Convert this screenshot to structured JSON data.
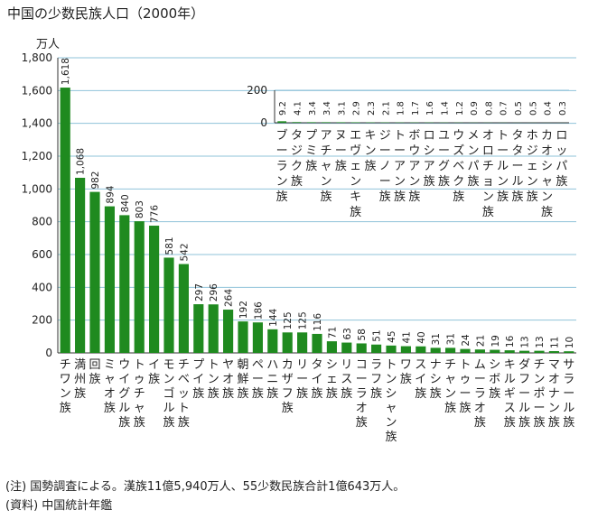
{
  "chart_data": {
    "type": "bar",
    "title": "中国の少数民族人口（2000年）",
    "unit": "万人",
    "ylim": [
      0,
      1800
    ],
    "y_ticks": [
      "0",
      "200",
      "400",
      "600",
      "800",
      "1,000",
      "1,200",
      "1,400",
      "1,600",
      "1,800"
    ],
    "grid": true,
    "bar_color": "#1f8a1f",
    "grid_color": "#8fc3d9",
    "categories": [
      "チワン族",
      "満州族",
      "回族",
      "ミャオ族",
      "ウイグル族",
      "トゥチャ族",
      "イ族",
      "モンゴル族",
      "チベット族",
      "プイ族",
      "トン族",
      "ヤオ族",
      "朝鮮族",
      "ペー族",
      "ハニ族",
      "カザフ族",
      "リー族",
      "タイ族",
      "シェ族",
      "リス族",
      "コーラオ族",
      "ラフ族",
      "トンシャン族",
      "ワ族",
      "スイ族",
      "ナシ族",
      "チャン族",
      "トゥー族",
      "ムーラオ族",
      "シボ族",
      "キルギス族",
      "ダフール族",
      "チンポー族",
      "マオナン族",
      "サラール族"
    ],
    "values": [
      1618,
      1068,
      982,
      894,
      840,
      803,
      776,
      581,
      542,
      297,
      296,
      264,
      192,
      186,
      144,
      125,
      125,
      116,
      71,
      63,
      58,
      51,
      45,
      41,
      40,
      31,
      31,
      24,
      21,
      19,
      16,
      13,
      13,
      11,
      10
    ],
    "inset": {
      "type": "bar",
      "ylim": [
        0,
        200
      ],
      "y_ticks": [
        "0",
        "200"
      ],
      "categories": [
        "ブーラン族",
        "タジク族",
        "プミ族",
        "アチャン族",
        "ヌー族",
        "エヴェンキ族",
        "キン族",
        "ジーノー族",
        "トーアン族",
        "ボウアン族",
        "ロシア族",
        "ユーグ族",
        "ウズベク族",
        "メンパ族",
        "オロチョン族",
        "トールン族",
        "タタール族",
        "ホジェン族",
        "カオシャン族",
        "ロッパ族"
      ],
      "values": [
        9.2,
        4.1,
        3.4,
        3.4,
        3.1,
        2.9,
        2.3,
        2.1,
        1.8,
        1.7,
        1.6,
        1.4,
        1.2,
        0.9,
        0.8,
        0.7,
        0.5,
        0.5,
        0.4,
        0.3
      ],
      "value_labels": [
        "9.2",
        "4.1",
        "3.4",
        "3.4",
        "3.1",
        "2.9",
        "2.3",
        "2.1",
        "1.8",
        "1.7",
        "1.6",
        "1.4",
        "1.2",
        "0.9",
        "0.8",
        "0.7",
        "0.5",
        "0.5",
        "0.4",
        "0.3"
      ]
    }
  },
  "note": "(注) 国勢調査による。漢族11億5,940万人、55少数民族合計1億643万人。",
  "source": "(資料) 中国統計年鑑"
}
